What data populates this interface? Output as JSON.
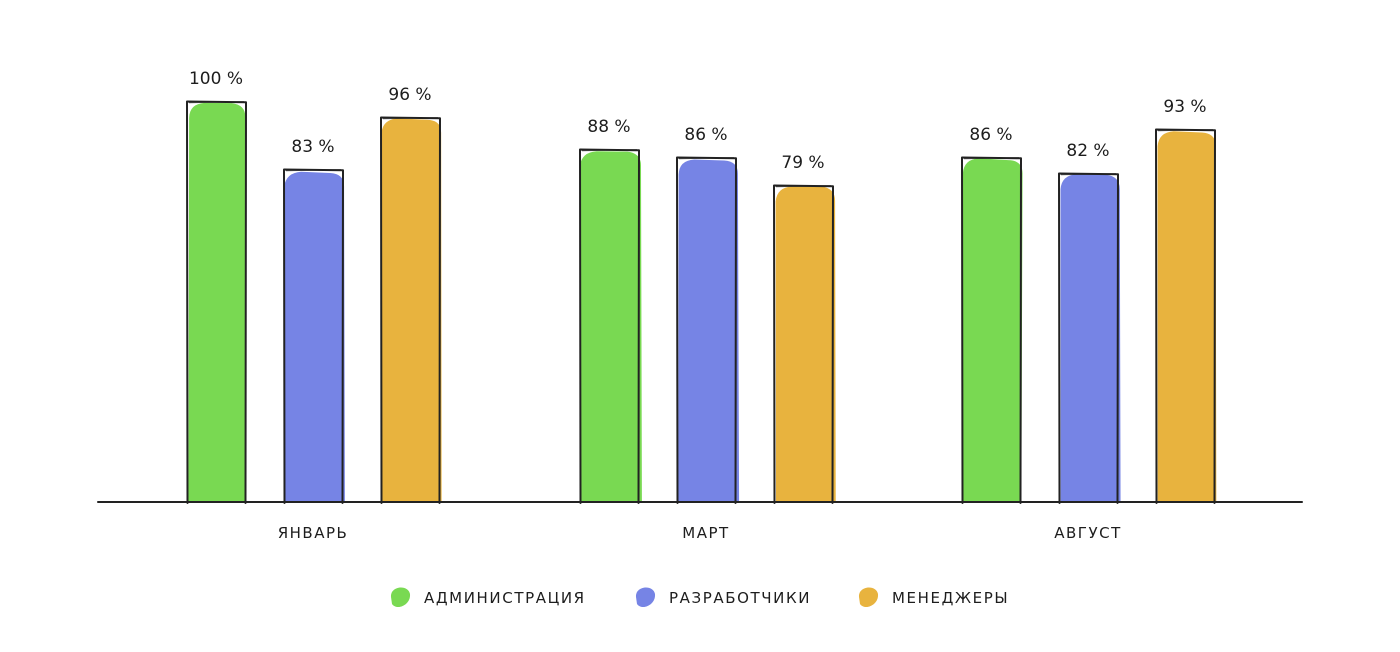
{
  "chart_data": {
    "type": "bar",
    "title": "",
    "xlabel": "",
    "ylabel": "",
    "ylim": [
      0,
      100
    ],
    "grid": false,
    "legend_position": "bottom-center",
    "value_suffix": " %",
    "categories": [
      "ЯНВАРЬ",
      "МАРТ",
      "АВГУСТ"
    ],
    "series": [
      {
        "name": "АДМИНИСТРАЦИЯ",
        "color": "#79d952",
        "values": [
          100,
          88,
          86
        ]
      },
      {
        "name": "РАЗРАБОТЧИКИ",
        "color": "#7684e5",
        "values": [
          83,
          86,
          82
        ]
      },
      {
        "name": "МЕНЕДЖЕРЫ",
        "color": "#e8b33e",
        "values": [
          96,
          79,
          93
        ]
      }
    ],
    "value_labels": [
      [
        "100 %",
        "88 %",
        "86 %"
      ],
      [
        "83 %",
        "86 %",
        "82 %"
      ],
      [
        "96 %",
        "79 %",
        "93 %"
      ]
    ]
  }
}
